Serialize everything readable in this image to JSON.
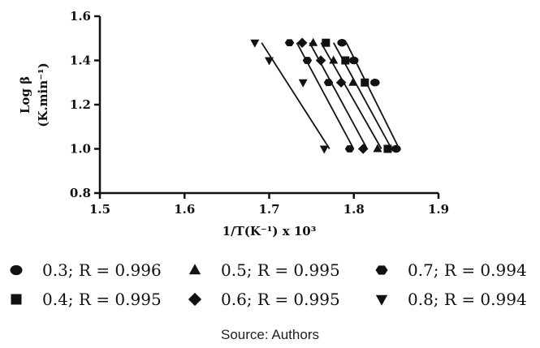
{
  "chart_data": {
    "type": "scatter",
    "xlabel": "1/T(K⁻¹) x 10³",
    "ylabel_line1": "Log β",
    "ylabel_line2": "(K.min⁻¹)",
    "xlim": [
      1.5,
      1.9
    ],
    "ylim": [
      0.8,
      1.6
    ],
    "xticks": [
      1.5,
      1.6,
      1.7,
      1.8,
      1.9
    ],
    "yticks": [
      0.8,
      1.0,
      1.2,
      1.4,
      1.6
    ],
    "xtick_labels": [
      "1.5",
      "1.6",
      "1.7",
      "1.8",
      "1.9"
    ],
    "ytick_labels": [
      "0.8",
      "1.0",
      "1.2",
      "1.4",
      "1.6"
    ],
    "series": [
      {
        "label": "0.3; R = 0.996",
        "marker": "circle",
        "x": [
          1.85,
          1.825,
          1.8,
          1.786
        ],
        "y": [
          1.0,
          1.3,
          1.4,
          1.48
        ]
      },
      {
        "label": "0.4; R = 0.995",
        "marker": "square",
        "x": [
          1.84,
          1.813,
          1.79,
          1.767
        ],
        "y": [
          1.0,
          1.3,
          1.4,
          1.48
        ]
      },
      {
        "label": "0.5; R = 0.995",
        "marker": "triangle-up",
        "x": [
          1.828,
          1.799,
          1.776,
          1.752
        ],
        "y": [
          1.0,
          1.3,
          1.4,
          1.48
        ]
      },
      {
        "label": "0.6; R = 0.995",
        "marker": "diamond",
        "x": [
          1.811,
          1.785,
          1.761,
          1.739
        ],
        "y": [
          1.0,
          1.3,
          1.4,
          1.48
        ]
      },
      {
        "label": "0.7; R = 0.994",
        "marker": "hexagon",
        "x": [
          1.795,
          1.77,
          1.745,
          1.724
        ],
        "y": [
          1.0,
          1.3,
          1.4,
          1.48
        ]
      },
      {
        "label": "0.8; R = 0.994",
        "marker": "triangle-down",
        "x": [
          1.765,
          1.74,
          1.7,
          1.683
        ],
        "y": [
          1.0,
          1.3,
          1.4,
          1.48
        ]
      }
    ],
    "legend_order": [
      0,
      2,
      4,
      1,
      3,
      5
    ],
    "legend_placement": "bottom",
    "grid": false,
    "colors": {
      "marker": "#111111",
      "line": "#111111"
    }
  },
  "source": "Source: Authors"
}
